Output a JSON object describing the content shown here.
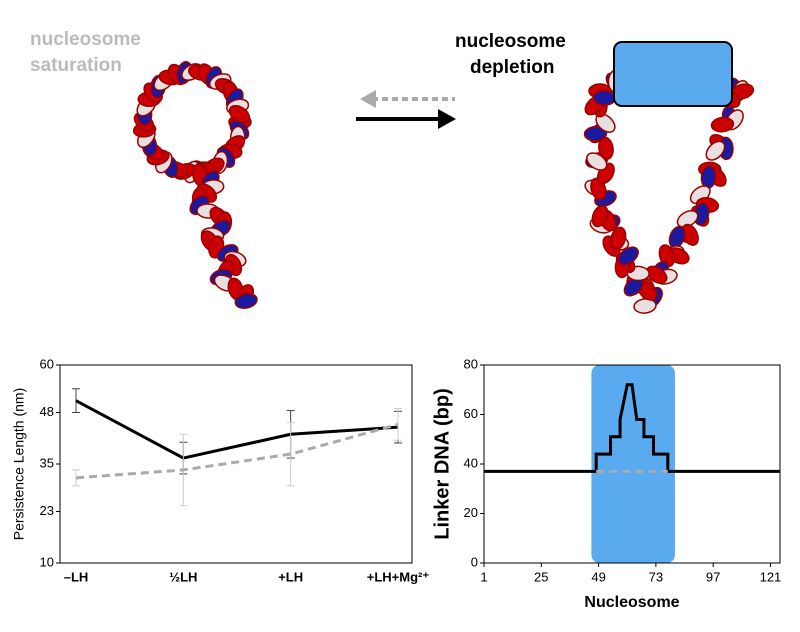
{
  "labels": {
    "left": [
      "nucleosome",
      "saturation"
    ],
    "right": [
      "nucleosome",
      "depletion"
    ]
  },
  "chart_data": [
    {
      "type": "line",
      "categories": [
        "–LH",
        "½LH",
        "+LH",
        "+LH+Mg²⁺"
      ],
      "y_label": "Persistence Length (nm)",
      "ylim": [
        10,
        60
      ],
      "yticks": [
        10,
        23,
        35,
        48,
        60
      ],
      "series": [
        {
          "color": "#000000",
          "dash": false,
          "values": [
            51,
            36.5,
            42.5,
            44.3
          ],
          "errors": [
            3,
            4,
            6,
            4
          ]
        },
        {
          "color": "#aaaaaa",
          "dash": true,
          "values": [
            31.5,
            33.5,
            37.5,
            45
          ],
          "errors": [
            2,
            9,
            8,
            4
          ]
        }
      ]
    },
    {
      "type": "line",
      "x_label": "Nucleosome",
      "y_label": "Linker DNA (bp)",
      "xlim": [
        1,
        125
      ],
      "xticks": [
        1,
        25,
        49,
        73,
        97,
        121
      ],
      "ylim": [
        0,
        80
      ],
      "yticks": [
        0,
        20,
        40,
        60,
        80
      ],
      "highlight": {
        "range": [
          46,
          81
        ],
        "color": "#5aaaf0"
      },
      "series": [
        {
          "color": "#000000",
          "dash": false,
          "x": [
            1,
            48,
            48,
            54,
            54,
            58,
            58,
            61,
            63,
            65,
            68,
            68,
            72,
            72,
            78,
            78,
            125
          ],
          "values": [
            37,
            37,
            44,
            44,
            51,
            51,
            58,
            72,
            72,
            58,
            58,
            51,
            51,
            44,
            44,
            37,
            37
          ]
        },
        {
          "color": "#aaaaaa",
          "dash": true,
          "x": [
            48,
            78
          ],
          "values": [
            37,
            37
          ]
        }
      ]
    }
  ]
}
